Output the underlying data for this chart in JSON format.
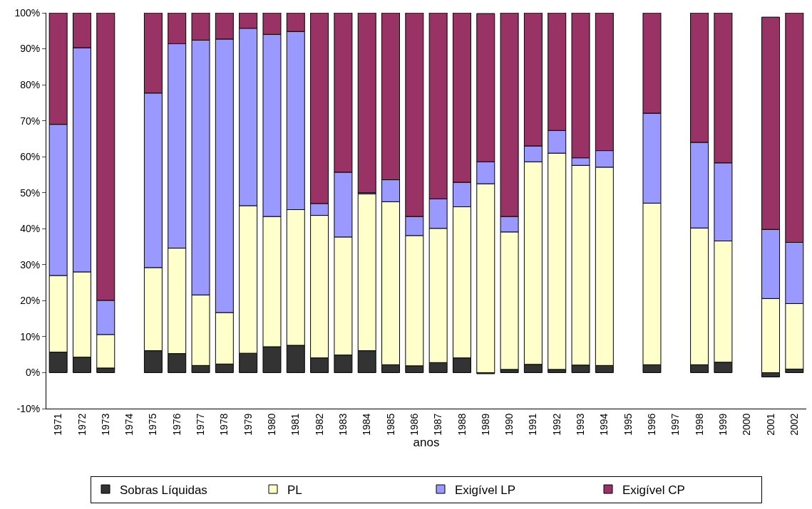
{
  "chart_data": {
    "type": "bar",
    "stacked": true,
    "xlabel": "anos",
    "categories": [
      "1971",
      "1972",
      "1973",
      "1974",
      "1975",
      "1976",
      "1977",
      "1978",
      "1979",
      "1980",
      "1981",
      "1982",
      "1983",
      "1984",
      "1985",
      "1986",
      "1987",
      "1988",
      "1989",
      "1990",
      "1991",
      "1992",
      "1993",
      "1994",
      "1995",
      "1996",
      "1997",
      "1998",
      "1999",
      "2000",
      "2001",
      "2002"
    ],
    "series": [
      {
        "name": "Sobras Líquidas",
        "color": "#333333",
        "values": [
          5.7,
          4.3,
          1.3,
          null,
          6.1,
          5.3,
          2.0,
          2.4,
          5.4,
          7.2,
          7.6,
          4.1,
          4.9,
          6.1,
          2.2,
          1.9,
          2.8,
          4.1,
          -0.3,
          0.9,
          2.3,
          0.9,
          2.1,
          2.0,
          null,
          2.2,
          null,
          2.2,
          2.9,
          null,
          -1.2,
          1.0
        ]
      },
      {
        "name": "PL",
        "color": "#ffffcc",
        "values": [
          21.3,
          23.7,
          9.3,
          null,
          23.1,
          29.3,
          19.6,
          14.3,
          41.0,
          36.2,
          37.7,
          39.6,
          32.8,
          43.6,
          45.3,
          36.2,
          37.3,
          42.0,
          52.5,
          38.2,
          56.3,
          60.1,
          55.5,
          55.1,
          null,
          44.9,
          null,
          38.0,
          33.7,
          null,
          20.6,
          18.2
        ]
      },
      {
        "name": "Exigível LP",
        "color": "#9999ff",
        "values": [
          42.0,
          62.3,
          9.5,
          null,
          48.5,
          56.8,
          70.8,
          76.0,
          49.3,
          50.6,
          49.5,
          3.3,
          18.0,
          0.3,
          6.1,
          5.3,
          8.2,
          6.8,
          6.1,
          4.3,
          4.4,
          6.3,
          2.1,
          4.6,
          null,
          25.0,
          null,
          23.8,
          21.7,
          null,
          19.2,
          17.0
        ]
      },
      {
        "name": "Exigível CP",
        "color": "#993366",
        "values": [
          31.0,
          9.7,
          79.9,
          null,
          22.3,
          8.6,
          7.6,
          7.3,
          4.3,
          6.0,
          5.2,
          53.0,
          44.3,
          50.0,
          46.4,
          56.6,
          51.7,
          47.1,
          41.2,
          56.6,
          37.0,
          32.7,
          40.3,
          38.3,
          null,
          27.9,
          null,
          36.0,
          41.7,
          null,
          59.0,
          63.8
        ]
      }
    ],
    "ylim": [
      -10,
      100
    ],
    "yticks": [
      {
        "value": -10,
        "label": "-10%"
      },
      {
        "value": 0,
        "label": "0%"
      },
      {
        "value": 10,
        "label": "10%"
      },
      {
        "value": 20,
        "label": "20%"
      },
      {
        "value": 30,
        "label": "30%"
      },
      {
        "value": 40,
        "label": "40%"
      },
      {
        "value": 50,
        "label": "50%"
      },
      {
        "value": 60,
        "label": "60%"
      },
      {
        "value": 70,
        "label": "70%"
      },
      {
        "value": 80,
        "label": "80%"
      },
      {
        "value": 90,
        "label": "90%"
      },
      {
        "value": 100,
        "label": "100%"
      }
    ],
    "grid": false,
    "legend": "bottom"
  }
}
